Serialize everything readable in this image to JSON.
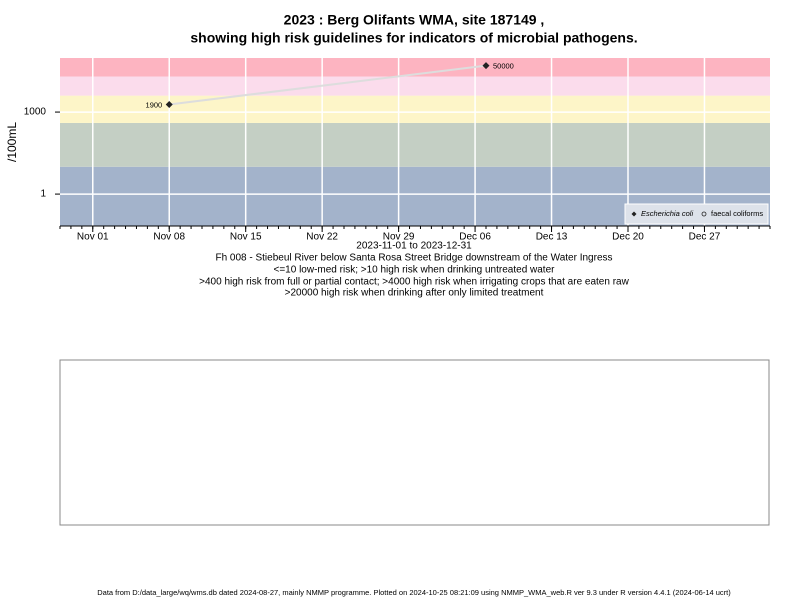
{
  "chart_data": {
    "type": "scatter",
    "title": "2023 : Berg Olifants WMA, site 187149 ,",
    "subtitle": "showing high risk guidelines for indicators of microbial pathogens.",
    "y_label": "/100mL",
    "x_label": "2023-11-01 to 2023-12-31",
    "notes": [
      "Fh 008 - Stiebeul River below Santa Rosa Street Bridge downstream of the Water Ingress",
      "<=10 low-med risk; >10 high risk when drinking untreated water",
      ">400 high risk from full or partial contact; >4000 high risk when irrigating crops that are eaten raw",
      ">20000 high risk when drinking after only limited treatment"
    ],
    "footer": "Data from D:/data_large/wq/wms.db dated 2024-08-27, mainly NMMP programme. Plotted on 2024-10-25 08:21:09 using NMMP_WMA_web.R ver 9.3 under R version 4.4.1 (2024-06-14 ucrt)",
    "x": [
      "2023-11-08",
      "2023-12-07"
    ],
    "series": [
      {
        "name": "Escherichia coli",
        "color": "#222222",
        "values": [
          1900,
          50000
        ]
      },
      {
        "name": "faecal coliforms",
        "color": "#222222",
        "values": [
          null,
          null
        ]
      }
    ],
    "log_y": true,
    "ylim": [
      0.068,
      95000
    ],
    "yticks": [
      1,
      1000
    ],
    "xlim": [
      "2023-10-29",
      "2024-01-02"
    ],
    "xticks": [
      {
        "value": "2023-11-01",
        "label": "Nov 01"
      },
      {
        "value": "2023-11-08",
        "label": "Nov 08"
      },
      {
        "value": "2023-11-15",
        "label": "Nov 15"
      },
      {
        "value": "2023-11-22",
        "label": "Nov 22"
      },
      {
        "value": "2023-11-29",
        "label": "Nov 29"
      },
      {
        "value": "2023-12-06",
        "label": "Dec 06"
      },
      {
        "value": "2023-12-13",
        "label": "Dec 13"
      },
      {
        "value": "2023-12-20",
        "label": "Dec 20"
      },
      {
        "value": "2023-12-27",
        "label": "Dec 27"
      }
    ],
    "band_breaks": [
      10,
      400,
      4000,
      20000
    ],
    "band_colors": [
      "#a3b3cb",
      "#c4cfc4",
      "#fdf5c8",
      "#fbdcec",
      "#fdb4c1"
    ],
    "line_color": "#dddddd",
    "grid": true,
    "legend_position": "bottom-right"
  }
}
